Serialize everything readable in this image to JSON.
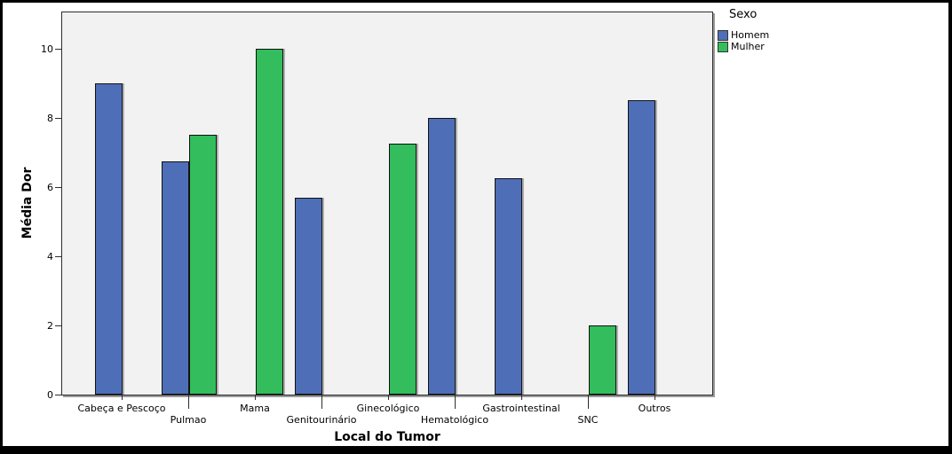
{
  "colors": {
    "frame": "#000000",
    "plot_background": "#f2f2f2",
    "axis": "#2e2e2e",
    "homem_blue": "#4e6fb7",
    "mulher_green": "#33bd5c"
  },
  "chart_data": {
    "type": "bar",
    "title": "",
    "xlabel": "Local do Tumor",
    "ylabel": "Média Dor",
    "ylim": [
      0,
      11.1
    ],
    "yticks": [
      0,
      2,
      4,
      6,
      8,
      10
    ],
    "grid": false,
    "legend": {
      "title": "Sexo",
      "position": "top-right-outside",
      "entries": [
        "Homem",
        "Mulher"
      ]
    },
    "categories": [
      "Cabeça e Pescoço",
      "Pulmao",
      "Mama",
      "Genitourinário",
      "Ginecológico",
      "Hematológico",
      "Gastrointestinal",
      "SNC",
      "Outros"
    ],
    "series": [
      {
        "name": "Homem",
        "color": "#4e6fb7",
        "values": [
          9.0,
          6.75,
          null,
          5.7,
          null,
          8.0,
          6.25,
          null,
          8.5
        ]
      },
      {
        "name": "Mulher",
        "color": "#33bd5c",
        "values": [
          null,
          7.5,
          10.0,
          null,
          7.25,
          null,
          null,
          2.0,
          null
        ]
      }
    ]
  }
}
